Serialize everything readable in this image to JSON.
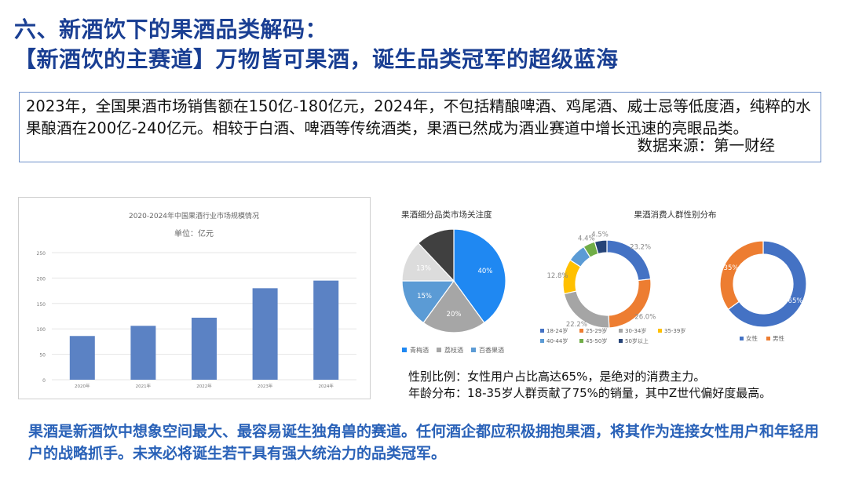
{
  "header": {
    "title_line1": "六、新酒饮下的果酒品类解码：",
    "title_line2": "【新酒饮的主赛道】万物皆可果酒，诞生品类冠军的超级蓝海"
  },
  "intro": {
    "text": "2023年，全国果酒市场销售额在150亿-180亿元，2024年，不包括精酿啤酒、鸡尾酒、威士忌等低度酒，纯粹的水果酿酒在200亿-240亿元。相较于白酒、啤酒等传统酒类，果酒已然成为酒业赛道中增长迅速的亮眼品类。",
    "source": "数据来源：第一财经"
  },
  "stats": {
    "gender": "性别比例：女性用户占比高达65%，是绝对的消费主力。",
    "age": "年龄分布：18-35岁人群贡献了75%的销量，其中Z世代偏好度最高。"
  },
  "conclusion": "果酒是新酒饮中想象空间最大、最容易诞生独角兽的赛道。任何酒企都应积极拥抱果酒，将其作为连接女性用户和年轻用户的战略抓手。未来必将诞生若干具有强大统治力的品类冠军。",
  "chart_data": [
    {
      "type": "bar",
      "title": "2020-2024年中国果酒行业市场规模情况",
      "subtitle": "单位：亿元",
      "categories": [
        "2020年",
        "2021年",
        "2022年",
        "2023年",
        "2024年"
      ],
      "values": [
        86,
        106,
        122,
        180,
        195
      ],
      "ylim": [
        0,
        250
      ],
      "yticks": [
        0,
        50,
        100,
        150,
        200,
        250
      ],
      "grid": true,
      "color": "#5b82c4"
    },
    {
      "type": "pie",
      "title": "果酒细分品类市场关注度",
      "labels": [
        "青梅酒",
        "荔枝酒",
        "百香果酒",
        "",
        ""
      ],
      "values": [
        40,
        20,
        15,
        13,
        12
      ],
      "value_labels": [
        "40%",
        "20%",
        "15%",
        "13%",
        ""
      ],
      "colors": [
        "#1f88f2",
        "#a6a6a6",
        "#5b9bd5",
        "#dcdcdc",
        "#404040"
      ],
      "legend": "bottom"
    },
    {
      "type": "pie",
      "title": "果酒消费人群性别分布",
      "rings": [
        {
          "labels": [
            "18-24岁",
            "25-29岁",
            "30-34岁",
            "35-39岁",
            "40-44岁",
            "45-50岁",
            "50岁以上"
          ],
          "values": [
            23.2,
            26.0,
            22.2,
            12.8,
            6.9,
            4.4,
            4.5
          ],
          "value_labels": [
            "23.2%",
            "26.0%",
            "22.2%",
            "12.8%",
            "",
            "4.4%",
            "4.5%"
          ],
          "colors": [
            "#4472c4",
            "#ed7d31",
            "#a5a5a5",
            "#ffc000",
            "#5b9bd5",
            "#70ad47",
            "#264478"
          ]
        },
        {
          "labels": [
            "女性",
            "男性"
          ],
          "values": [
            65,
            35
          ],
          "value_labels": [
            "65%",
            "35%"
          ],
          "colors": [
            "#4472c4",
            "#ed7d31"
          ]
        }
      ],
      "legend": "bottom"
    }
  ]
}
